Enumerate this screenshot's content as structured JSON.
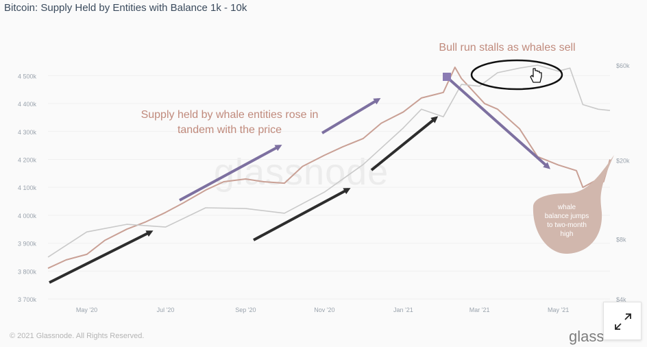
{
  "page": {
    "title": "Bitcoin: Supply Held by Entities with Balance 1k - 10k",
    "watermark": "glassnode",
    "copyright": "© 2021 Glassnode. All Rights Reserved.",
    "brand": "glass",
    "expand_icon": "expand-arrows-icon"
  },
  "colors": {
    "supply_line": "#c9a095",
    "price_line": "#c9c9c9",
    "purple_arrow": "#7d70a0",
    "black_arrow": "#2d2d2d",
    "annotation_text": "#c08a7c",
    "callout_bubble": "#d1b7ad",
    "callout_text": "#ffffff",
    "marker": "#8b7cb4"
  },
  "chart_data": {
    "type": "line",
    "title": "Bitcoin: Supply Held by Entities with Balance 1k - 10k",
    "x_ticks": [
      "May '20",
      "Jul '20",
      "Sep '20",
      "Nov '20",
      "Jan '21",
      "Mar '21",
      "May '21"
    ],
    "y_left_ticks": [
      "3 700k",
      "3 800k",
      "3 900k",
      "4 000k",
      "4 100k",
      "4 200k",
      "4 300k",
      "4 400k",
      "4 500k"
    ],
    "y_right_ticks": [
      "$4k",
      "$8k",
      "$20k",
      "$60k"
    ],
    "y_left_range": [
      3700000,
      4550000
    ],
    "y_right_scale": "log",
    "x_range": [
      "2020-04-01",
      "2021-06-10"
    ],
    "series": [
      {
        "axis": "left",
        "x": [
          "2020-04-01",
          "2020-04-15",
          "2020-05-01",
          "2020-05-15",
          "2020-06-01",
          "2020-06-15",
          "2020-07-01",
          "2020-07-15",
          "2020-08-01",
          "2020-08-15",
          "2020-09-01",
          "2020-09-15",
          "2020-10-01",
          "2020-10-15",
          "2020-11-01",
          "2020-11-15",
          "2020-12-01",
          "2020-12-15",
          "2021-01-01",
          "2021-01-15",
          "2021-02-01",
          "2021-02-10",
          "2021-02-15",
          "2021-02-25",
          "2021-03-05",
          "2021-03-15",
          "2021-04-01",
          "2021-04-15",
          "2021-05-01",
          "2021-05-15",
          "2021-05-20",
          "2021-06-01",
          "2021-06-05",
          "2021-06-10"
        ],
        "values": [
          3810000,
          3840000,
          3860000,
          3910000,
          3950000,
          3975000,
          4010000,
          4045000,
          4090000,
          4120000,
          4130000,
          4120000,
          4115000,
          4175000,
          4215000,
          4245000,
          4275000,
          4330000,
          4370000,
          4420000,
          4440000,
          4530000,
          4490000,
          4440000,
          4400000,
          4380000,
          4310000,
          4210000,
          4180000,
          4160000,
          4100000,
          4130000,
          4120000,
          4200000
        ]
      },
      {
        "axis": "right",
        "x": [
          "2020-04-01",
          "2020-05-01",
          "2020-06-01",
          "2020-07-01",
          "2020-08-01",
          "2020-09-01",
          "2020-10-01",
          "2020-11-01",
          "2020-12-01",
          "2021-01-01",
          "2021-01-15",
          "2021-02-01",
          "2021-02-15",
          "2021-03-01",
          "2021-03-15",
          "2021-04-01",
          "2021-04-15",
          "2021-05-01",
          "2021-05-10",
          "2021-05-20",
          "2021-06-01",
          "2021-06-10"
        ],
        "values": [
          6500,
          8700,
          9500,
          9200,
          11500,
          11400,
          10800,
          13800,
          19000,
          29000,
          36000,
          33000,
          48000,
          47000,
          55000,
          58000,
          60000,
          56000,
          58000,
          38000,
          36000,
          35500
        ]
      }
    ],
    "annotations": [
      "Supply held by whale entities rose in\ntandem with the price",
      "Bull run stalls as whales sell",
      "whale\nbalance jumps\nto two-month\nhigh"
    ]
  }
}
